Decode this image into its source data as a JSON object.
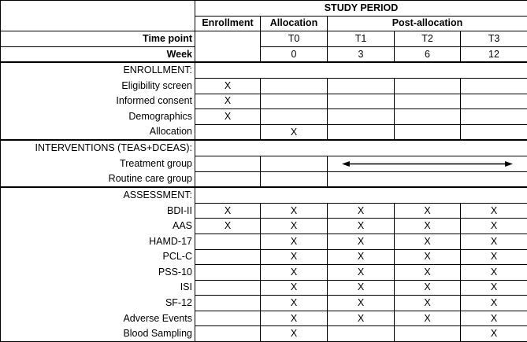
{
  "header": {
    "study_period": "STUDY PERIOD",
    "periods": [
      "Enrollment",
      "Allocation",
      "Post-allocation"
    ],
    "time_point_label": "Time point",
    "time_points": [
      "T0",
      "T1",
      "T2",
      "T3"
    ],
    "week_label": "Week",
    "weeks": [
      "0",
      "3",
      "6",
      "12"
    ]
  },
  "sections": [
    {
      "title": "ENROLLMENT:",
      "rows": [
        {
          "label": "Eligibility screen",
          "marks": [
            "X",
            "",
            "",
            "",
            ""
          ]
        },
        {
          "label": "Informed consent",
          "marks": [
            "X",
            "",
            "",
            "",
            ""
          ]
        },
        {
          "label": "Demographics",
          "marks": [
            "X",
            "",
            "",
            "",
            ""
          ]
        },
        {
          "label": "Allocation",
          "marks": [
            "",
            "X",
            "",
            "",
            ""
          ]
        }
      ]
    },
    {
      "title": "INTERVENTIONS (TEAS+DCEAS):",
      "rows": [
        {
          "label": "Treatment group",
          "marks": [
            "",
            ""
          ],
          "post": "arrow-both"
        },
        {
          "label": "Routine care group",
          "marks": [
            "",
            ""
          ],
          "post": "none"
        }
      ]
    },
    {
      "title": "ASSESSMENT:",
      "rows": [
        {
          "label": "BDI-II",
          "marks": [
            "X",
            "X",
            "X",
            "X",
            "X"
          ]
        },
        {
          "label": "AAS",
          "marks": [
            "X",
            "X",
            "X",
            "X",
            "X"
          ]
        },
        {
          "label": "HAMD-17",
          "marks": [
            "",
            "X",
            "X",
            "X",
            "X"
          ]
        },
        {
          "label": "PCL-C",
          "marks": [
            "",
            "X",
            "X",
            "X",
            "X"
          ]
        },
        {
          "label": "PSS-10",
          "marks": [
            "",
            "X",
            "X",
            "X",
            "X"
          ]
        },
        {
          "label": "ISI",
          "marks": [
            "",
            "X",
            "X",
            "X",
            "X"
          ]
        },
        {
          "label": "SF-12",
          "marks": [
            "",
            "X",
            "X",
            "X",
            "X"
          ]
        },
        {
          "label": "Adverse Events",
          "marks": [
            "",
            "X",
            "X",
            "X",
            "X"
          ]
        },
        {
          "label": "Blood Sampling",
          "marks": [
            "",
            "X",
            "",
            "",
            "X"
          ]
        }
      ]
    }
  ]
}
